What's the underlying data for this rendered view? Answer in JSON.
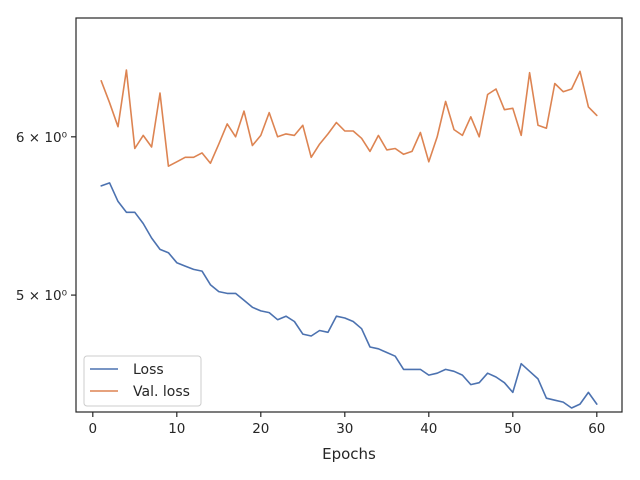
{
  "chart_data": {
    "type": "line",
    "title": "",
    "xlabel": "Epochs",
    "ylabel": "",
    "y_scale": "log",
    "xlim": [
      -2,
      63
    ],
    "ylim": [
      4.37,
      6.88
    ],
    "x_ticks": [
      0,
      10,
      20,
      30,
      40,
      50,
      60
    ],
    "y_ticks": [
      5,
      6
    ],
    "y_tick_labels": [
      "5 × 10⁰",
      "6 × 10⁰"
    ],
    "grid": false,
    "legend_position": "lower-left",
    "x": [
      1,
      2,
      3,
      4,
      5,
      6,
      7,
      8,
      9,
      10,
      11,
      12,
      13,
      14,
      15,
      16,
      17,
      18,
      19,
      20,
      21,
      22,
      23,
      24,
      25,
      26,
      27,
      28,
      29,
      30,
      31,
      32,
      33,
      34,
      35,
      36,
      37,
      38,
      39,
      40,
      41,
      42,
      43,
      44,
      45,
      46,
      47,
      48,
      49,
      50,
      51,
      52,
      53,
      54,
      55,
      56,
      57,
      58,
      59,
      60
    ],
    "series": [
      {
        "name": "Loss",
        "color": "#4c72b0",
        "values": [
          5.67,
          5.69,
          5.57,
          5.5,
          5.5,
          5.43,
          5.34,
          5.27,
          5.25,
          5.19,
          5.17,
          5.15,
          5.14,
          5.06,
          5.02,
          5.01,
          5.01,
          4.97,
          4.93,
          4.91,
          4.9,
          4.86,
          4.88,
          4.85,
          4.78,
          4.77,
          4.8,
          4.79,
          4.88,
          4.87,
          4.85,
          4.81,
          4.71,
          4.7,
          4.68,
          4.66,
          4.59,
          4.59,
          4.59,
          4.56,
          4.57,
          4.59,
          4.58,
          4.56,
          4.51,
          4.52,
          4.57,
          4.55,
          4.52,
          4.47,
          4.62,
          4.58,
          4.54,
          4.44,
          4.43,
          4.42,
          4.39,
          4.41,
          4.47,
          4.41
        ]
      },
      {
        "name": "Val. loss",
        "color": "#dd8452",
        "values": [
          6.4,
          6.24,
          6.07,
          6.48,
          5.92,
          6.01,
          5.93,
          6.31,
          5.8,
          5.83,
          5.86,
          5.86,
          5.89,
          5.82,
          5.95,
          6.09,
          6.0,
          6.18,
          5.94,
          6.01,
          6.17,
          6.0,
          6.02,
          6.01,
          6.08,
          5.86,
          5.95,
          6.02,
          6.1,
          6.04,
          6.04,
          5.99,
          5.9,
          6.01,
          5.91,
          5.92,
          5.88,
          5.9,
          6.03,
          5.83,
          6.0,
          6.25,
          6.05,
          6.01,
          6.14,
          6.0,
          6.3,
          6.34,
          6.19,
          6.2,
          6.01,
          6.46,
          6.08,
          6.06,
          6.38,
          6.32,
          6.34,
          6.47,
          6.21,
          6.15
        ]
      }
    ]
  }
}
